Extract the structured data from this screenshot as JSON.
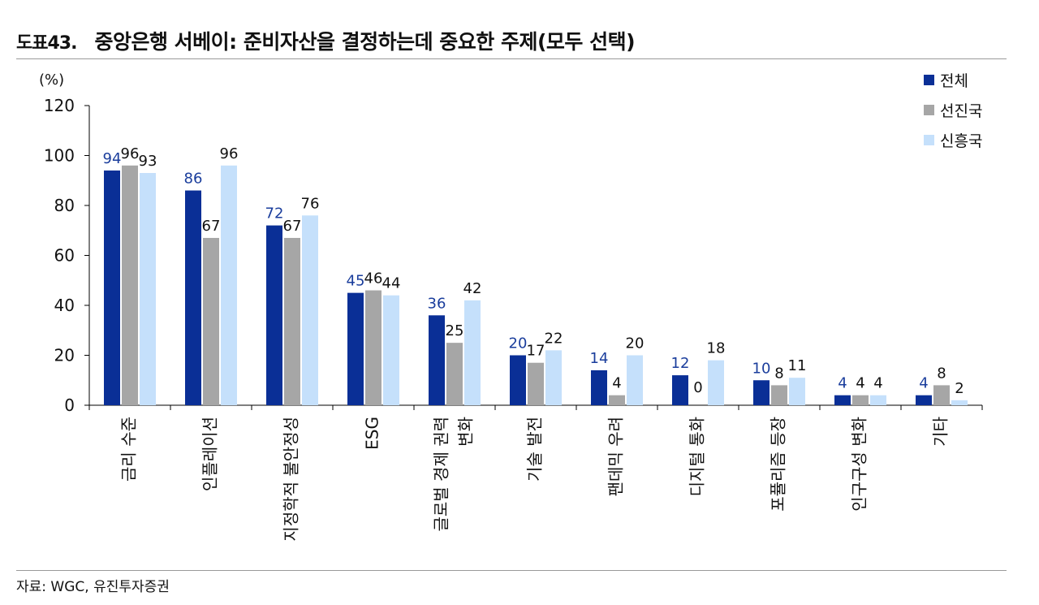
{
  "figure": {
    "number": "도표43.",
    "title": "중앙은행 서베이: 준비자산을 결정하는데 중요한 주제(모두 선택)"
  },
  "source": "자료: WGC, 유진투자증권",
  "colors": {
    "series": [
      "#0a2f96",
      "#a6a6a6",
      "#c5e0fb"
    ],
    "label_series0": "#1a3d9c",
    "text": "#111111",
    "axis": "#000000"
  },
  "chart_data": {
    "type": "bar",
    "title": "중앙은행 서베이: 준비자산을 결정하는데 중요한 주제(모두 선택)",
    "ylabel": "(%)",
    "xlabel": "",
    "ylim": [
      0,
      120
    ],
    "yticks": [
      0,
      20,
      40,
      60,
      80,
      100,
      120
    ],
    "grid": false,
    "legend_position": "top-right",
    "categories": [
      "금리 수준",
      "인플레이션",
      "지정학적 불안정성",
      "ESG",
      "글로벌 경제 권력 변화",
      "기술 발전",
      "팬데믹 우려",
      "디지털 통화",
      "포퓰리즘 등장",
      "인구구성 변화",
      "기타"
    ],
    "category_lines": [
      [
        "금리 수준"
      ],
      [
        "인플레이션"
      ],
      [
        "지정학적 불안정성"
      ],
      [
        "ESG"
      ],
      [
        "글로벌 경제 권력",
        "변화"
      ],
      [
        "기술 발전"
      ],
      [
        "팬데믹 우려"
      ],
      [
        "디지털 통화"
      ],
      [
        "포퓰리즘 등장"
      ],
      [
        "인구구성 변화"
      ],
      [
        "기타"
      ]
    ],
    "series": [
      {
        "name": "전체",
        "values": [
          94,
          86,
          72,
          45,
          36,
          20,
          14,
          12,
          10,
          4,
          4
        ]
      },
      {
        "name": "선진국",
        "values": [
          96,
          67,
          67,
          46,
          25,
          17,
          4,
          0,
          8,
          4,
          8
        ]
      },
      {
        "name": "신흥국",
        "values": [
          93,
          96,
          76,
          44,
          42,
          22,
          20,
          18,
          11,
          4,
          2
        ]
      }
    ]
  }
}
